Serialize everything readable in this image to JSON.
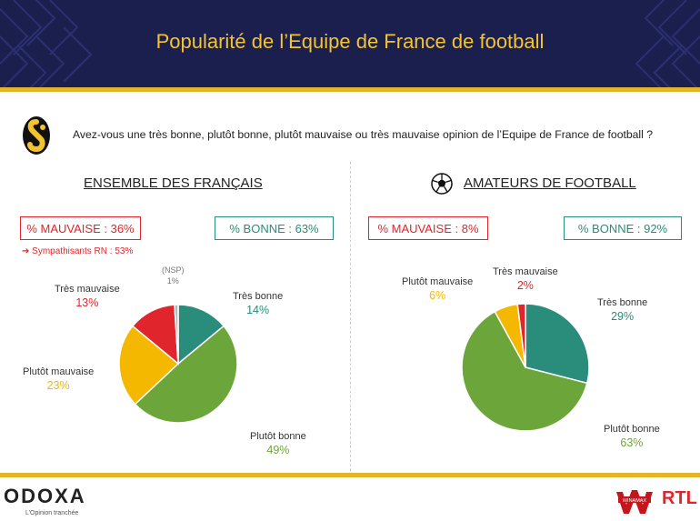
{
  "header": {
    "title": "Popularité de l’Equipe de France de football"
  },
  "question": "Avez-vous une très bonne, plutôt bonne, plutôt mauvaise ou très mauvaise opinion de l’Equipe de France de football ?",
  "colors": {
    "tres_bonne": "#2a8c7a",
    "plutot_bonne": "#6ca63a",
    "plutot_mauvaise": "#f5b800",
    "tres_mauvaise": "#e0262c",
    "nsp": "#b8b8b8",
    "header_bg": "#1b1f4e",
    "accent_gold": "#e3b52a"
  },
  "left": {
    "title": "ENSEMBLE DES FRANÇAIS",
    "mauvaise_box": "% MAUVAISE : 36%",
    "bonne_box": "% BONNE : 63%",
    "sub_note": "Sympathisants RN : 53%",
    "labels": {
      "nsp": "(NSP)",
      "nsp_pct": "1%",
      "tres_bonne": "Très bonne",
      "tres_bonne_pct": "14%",
      "plutot_bonne": "Plutôt bonne",
      "plutot_bonne_pct": "49%",
      "plutot_mauvaise": "Plutôt mauvaise",
      "plutot_mauvaise_pct": "23%",
      "tres_mauvaise": "Très mauvaise",
      "tres_mauvaise_pct": "13%"
    }
  },
  "right": {
    "title": "AMATEURS DE FOOTBALL",
    "icon": "football-icon",
    "mauvaise_box": "% MAUVAISE : 8%",
    "bonne_box": "% BONNE : 92%",
    "labels": {
      "tres_bonne": "Très bonne",
      "tres_bonne_pct": "29%",
      "plutot_bonne": "Plutôt bonne",
      "plutot_bonne_pct": "63%",
      "plutot_mauvaise": "Plutôt mauvaise",
      "plutot_mauvaise_pct": "6%",
      "tres_mauvaise": "Très mauvaise",
      "tres_mauvaise_pct": "2%"
    }
  },
  "footer": {
    "brand": "ODOXA",
    "tagline": "L’Opinion tranchée",
    "partner1": "WINAMAX",
    "partner2": "RTL"
  },
  "chart_data": [
    {
      "type": "pie",
      "title": "ENSEMBLE DES FRANÇAIS",
      "categories": [
        "Très bonne",
        "Plutôt bonne",
        "Plutôt mauvaise",
        "Très mauvaise",
        "(NSP)"
      ],
      "values": [
        14,
        49,
        23,
        13,
        1
      ],
      "colors": [
        "#2a8c7a",
        "#6ca63a",
        "#f5b800",
        "#e0262c",
        "#b8b8b8"
      ]
    },
    {
      "type": "pie",
      "title": "AMATEURS DE FOOTBALL",
      "categories": [
        "Très bonne",
        "Plutôt bonne",
        "Plutôt mauvaise",
        "Très mauvaise"
      ],
      "values": [
        29,
        63,
        6,
        2
      ],
      "colors": [
        "#2a8c7a",
        "#6ca63a",
        "#f5b800",
        "#e0262c"
      ]
    }
  ]
}
